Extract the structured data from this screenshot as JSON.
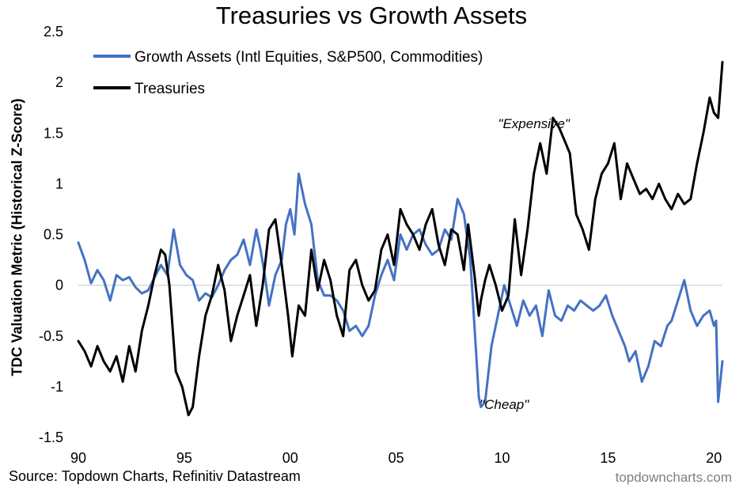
{
  "chart_data": {
    "type": "line",
    "title": "Treasuries vs Growth Assets",
    "ylabel": "TDC Valuation Metric (Historical Z-Score)",
    "xlabel": "",
    "ylim": [
      -1.5,
      2.5
    ],
    "yticks": [
      "-1.5",
      "-1",
      "-0.5",
      "0",
      "0.5",
      "1",
      "1.5",
      "2",
      "2.5"
    ],
    "xlim": [
      1990,
      2020.4
    ],
    "xticks": [
      {
        "label": "90",
        "value": 1990
      },
      {
        "label": "95",
        "value": 1995
      },
      {
        "label": "00",
        "value": 2000
      },
      {
        "label": "05",
        "value": 2005
      },
      {
        "label": "10",
        "value": 2010
      },
      {
        "label": "15",
        "value": 2015
      },
      {
        "label": "20",
        "value": 2020
      }
    ],
    "grid": false,
    "legend": "top-left",
    "series": [
      {
        "name": "Growth Assets (Intl Equities, S&P500, Commodities)",
        "color": "#4472C4",
        "x": [
          1990.0,
          1990.3,
          1990.6,
          1990.9,
          1991.2,
          1991.5,
          1991.8,
          1992.1,
          1992.4,
          1992.7,
          1993.0,
          1993.3,
          1993.6,
          1993.9,
          1994.2,
          1994.5,
          1994.8,
          1995.1,
          1995.4,
          1995.7,
          1996.0,
          1996.3,
          1996.6,
          1996.9,
          1997.2,
          1997.5,
          1997.8,
          1998.1,
          1998.4,
          1998.6,
          1998.8,
          1999.0,
          1999.3,
          1999.6,
          1999.8,
          2000.0,
          2000.2,
          2000.4,
          2000.7,
          2001.0,
          2001.3,
          2001.6,
          2001.9,
          2002.2,
          2002.5,
          2002.8,
          2003.1,
          2003.4,
          2003.7,
          2004.0,
          2004.3,
          2004.6,
          2004.9,
          2005.2,
          2005.5,
          2005.8,
          2006.1,
          2006.4,
          2006.7,
          2007.0,
          2007.3,
          2007.6,
          2007.9,
          2008.2,
          2008.5,
          2008.8,
          2008.9,
          2009.0,
          2009.2,
          2009.5,
          2009.8,
          2010.1,
          2010.4,
          2010.7,
          2011.0,
          2011.3,
          2011.6,
          2011.9,
          2012.2,
          2012.5,
          2012.8,
          2013.1,
          2013.4,
          2013.7,
          2014.0,
          2014.3,
          2014.6,
          2014.9,
          2015.2,
          2015.5,
          2015.8,
          2016.0,
          2016.3,
          2016.6,
          2016.9,
          2017.2,
          2017.5,
          2017.8,
          2018.0,
          2018.3,
          2018.6,
          2018.9,
          2019.2,
          2019.5,
          2019.8,
          2020.0,
          2020.1,
          2020.2,
          2020.4
        ],
        "y": [
          0.42,
          0.25,
          0.02,
          0.15,
          0.05,
          -0.15,
          0.1,
          0.05,
          0.08,
          -0.02,
          -0.08,
          -0.05,
          0.08,
          0.2,
          0.1,
          0.55,
          0.2,
          0.1,
          0.05,
          -0.15,
          -0.08,
          -0.12,
          0.0,
          0.15,
          0.25,
          0.3,
          0.45,
          0.2,
          0.55,
          0.35,
          0.1,
          -0.2,
          0.1,
          0.25,
          0.6,
          0.75,
          0.5,
          1.1,
          0.8,
          0.6,
          0.05,
          -0.1,
          -0.1,
          -0.15,
          -0.25,
          -0.45,
          -0.4,
          -0.5,
          -0.4,
          -0.1,
          0.1,
          0.25,
          0.05,
          0.5,
          0.35,
          0.5,
          0.55,
          0.4,
          0.3,
          0.35,
          0.55,
          0.45,
          0.85,
          0.7,
          0.25,
          -0.75,
          -1.1,
          -1.2,
          -1.15,
          -0.6,
          -0.3,
          0.0,
          -0.2,
          -0.4,
          -0.15,
          -0.3,
          -0.2,
          -0.5,
          -0.05,
          -0.3,
          -0.35,
          -0.2,
          -0.25,
          -0.15,
          -0.2,
          -0.25,
          -0.2,
          -0.1,
          -0.3,
          -0.45,
          -0.6,
          -0.75,
          -0.65,
          -0.95,
          -0.8,
          -0.55,
          -0.6,
          -0.4,
          -0.35,
          -0.15,
          0.05,
          -0.25,
          -0.4,
          -0.3,
          -0.25,
          -0.4,
          -0.35,
          -1.15,
          -0.75
        ]
      },
      {
        "name": "Treasuries",
        "color": "#000000",
        "x": [
          1990.0,
          1990.3,
          1990.6,
          1990.9,
          1991.2,
          1991.5,
          1991.8,
          1992.1,
          1992.4,
          1992.7,
          1993.0,
          1993.3,
          1993.6,
          1993.9,
          1994.1,
          1994.3,
          1994.6,
          1994.9,
          1995.2,
          1995.4,
          1995.7,
          1996.0,
          1996.3,
          1996.6,
          1996.9,
          1997.2,
          1997.5,
          1997.8,
          1998.1,
          1998.4,
          1998.7,
          1999.0,
          1999.3,
          1999.6,
          1999.9,
          2000.1,
          2000.4,
          2000.7,
          2001.0,
          2001.3,
          2001.6,
          2001.9,
          2002.2,
          2002.5,
          2002.8,
          2003.1,
          2003.4,
          2003.7,
          2004.0,
          2004.3,
          2004.6,
          2004.9,
          2005.2,
          2005.5,
          2005.8,
          2006.1,
          2006.4,
          2006.7,
          2007.0,
          2007.3,
          2007.6,
          2007.9,
          2008.2,
          2008.4,
          2008.7,
          2008.9,
          2009.0,
          2009.2,
          2009.4,
          2009.7,
          2010.0,
          2010.3,
          2010.6,
          2010.9,
          2011.2,
          2011.5,
          2011.8,
          2012.1,
          2012.4,
          2012.7,
          2013.0,
          2013.2,
          2013.5,
          2013.8,
          2014.1,
          2014.4,
          2014.7,
          2015.0,
          2015.3,
          2015.6,
          2015.9,
          2016.2,
          2016.5,
          2016.8,
          2017.1,
          2017.4,
          2017.7,
          2018.0,
          2018.3,
          2018.6,
          2018.9,
          2019.2,
          2019.5,
          2019.8,
          2020.0,
          2020.2,
          2020.4
        ],
        "y": [
          -0.55,
          -0.65,
          -0.8,
          -0.6,
          -0.75,
          -0.85,
          -0.7,
          -0.95,
          -0.6,
          -0.85,
          -0.45,
          -0.2,
          0.1,
          0.35,
          0.3,
          0.0,
          -0.85,
          -1.0,
          -1.28,
          -1.2,
          -0.7,
          -0.3,
          -0.1,
          0.2,
          -0.05,
          -0.55,
          -0.3,
          -0.1,
          0.1,
          -0.4,
          0.0,
          0.55,
          0.65,
          0.2,
          -0.3,
          -0.7,
          -0.2,
          -0.3,
          0.35,
          -0.05,
          0.25,
          0.05,
          -0.3,
          -0.5,
          0.15,
          0.25,
          0.0,
          -0.15,
          -0.05,
          0.35,
          0.5,
          0.2,
          0.75,
          0.6,
          0.5,
          0.35,
          0.6,
          0.75,
          0.4,
          0.2,
          0.55,
          0.5,
          0.15,
          0.6,
          0.1,
          -0.3,
          -0.15,
          0.05,
          0.2,
          0.0,
          -0.25,
          -0.1,
          0.65,
          0.1,
          0.55,
          1.1,
          1.4,
          1.1,
          1.65,
          1.55,
          1.4,
          1.3,
          0.7,
          0.55,
          0.35,
          0.85,
          1.1,
          1.2,
          1.4,
          0.85,
          1.2,
          1.05,
          0.9,
          0.95,
          0.85,
          1.0,
          0.85,
          0.75,
          0.9,
          0.8,
          0.85,
          1.2,
          1.5,
          1.85,
          1.7,
          1.65,
          2.2
        ]
      }
    ],
    "annotations": [
      {
        "text": "\"Expensive\"",
        "x": 2011.5,
        "y": 1.55
      },
      {
        "text": "\"Cheap\"",
        "x": 2010.1,
        "y": -1.22
      }
    ]
  },
  "source_text": "Source: Topdown Charts, Refinitiv Datastream",
  "watermark": "topdowncharts.com"
}
